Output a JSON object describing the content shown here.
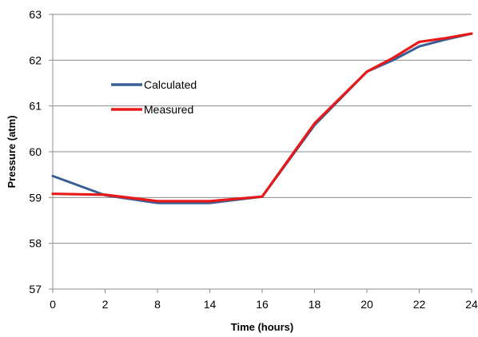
{
  "chart_data": {
    "type": "line",
    "xlabel": "Time (hours)",
    "ylabel": "Pressure (atm)",
    "x_tick_labels": [
      "0",
      "2",
      "8",
      "14",
      "16",
      "18",
      "20",
      "22",
      "24"
    ],
    "y_tick_labels": [
      "57",
      "58",
      "59",
      "60",
      "61",
      "62",
      "63"
    ],
    "ylim": [
      57,
      63
    ],
    "grid": "horizontal",
    "legend_position": "upper-left inside",
    "series": [
      {
        "name": "Calculated",
        "color": "#3A5F96",
        "points": [
          {
            "x": "0",
            "y": 59.47
          },
          {
            "x": "2",
            "y": 59.05
          },
          {
            "x": "8",
            "y": 58.88
          },
          {
            "x": "14",
            "y": 58.88
          },
          {
            "x": "16",
            "y": 59.02
          },
          {
            "x": "18",
            "y": 60.58
          },
          {
            "x": "20",
            "y": 61.75
          },
          {
            "x": "21",
            "y": 62.0
          },
          {
            "x": "22",
            "y": 62.3
          },
          {
            "x": "23",
            "y": 62.45
          },
          {
            "x": "24",
            "y": 62.58
          }
        ]
      },
      {
        "name": "Measured",
        "color": "#E81919",
        "points": [
          {
            "x": "0",
            "y": 59.08
          },
          {
            "x": "2",
            "y": 59.06
          },
          {
            "x": "8",
            "y": 58.92
          },
          {
            "x": "14",
            "y": 58.92
          },
          {
            "x": "16",
            "y": 59.02
          },
          {
            "x": "18",
            "y": 60.62
          },
          {
            "x": "20",
            "y": 61.75
          },
          {
            "x": "21",
            "y": 62.05
          },
          {
            "x": "22",
            "y": 62.4
          },
          {
            "x": "23",
            "y": 62.48
          },
          {
            "x": "24",
            "y": 62.58
          }
        ]
      }
    ]
  }
}
